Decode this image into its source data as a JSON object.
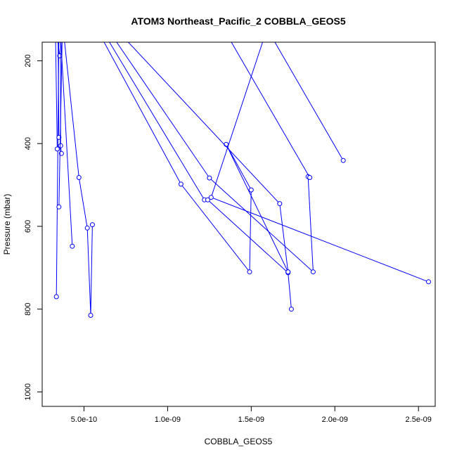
{
  "chart_data": {
    "type": "line",
    "title": "ATOM3 Northeast_Pacific_2 COBBLA_GEOS5",
    "xlabel": "COBBLA_GEOS5",
    "ylabel": "Pressure (mbar)",
    "x_ticks": [
      5e-10,
      1e-09,
      1.5e-09,
      2e-09,
      2.5e-09
    ],
    "x_tick_labels": [
      "5.0e-10",
      "1.0e-09",
      "1.5e-09",
      "2.0e-09",
      "2.5e-09"
    ],
    "y_ticks": [
      200,
      400,
      600,
      800,
      1000
    ],
    "y_tick_labels": [
      "200",
      "400",
      "600",
      "800",
      "1000"
    ],
    "xlim": [
      2.5e-10,
      2.6e-09
    ],
    "ylim": [
      1035,
      155
    ],
    "y_reversed": true,
    "color": "#0000ff",
    "series": [
      {
        "points": [
          [
            3.5e-10,
            140
          ],
          [
            3.35e-10,
            770
          ]
        ]
      },
      {
        "points": [
          [
            3.3e-10,
            140
          ],
          [
            3.4e-10,
            413
          ]
        ]
      },
      {
        "points": [
          [
            3.4e-10,
            140
          ],
          [
            3.55e-10,
            188
          ]
        ]
      },
      {
        "points": [
          [
            3.45e-10,
            140
          ],
          [
            3.5e-10,
            385
          ]
        ]
      },
      {
        "points": [
          [
            3.6e-10,
            140
          ],
          [
            3.6e-10,
            405
          ],
          [
            3.65e-10,
            424
          ]
        ]
      },
      {
        "points": [
          [
            3.7e-10,
            140
          ],
          [
            3.5e-10,
            553
          ]
        ]
      },
      {
        "points": [
          [
            3.6e-10,
            140
          ],
          [
            4.3e-10,
            648
          ]
        ]
      },
      {
        "points": [
          [
            3.8e-10,
            140
          ],
          [
            4.7e-10,
            482
          ],
          [
            5.2e-10,
            604
          ],
          [
            5.4e-10,
            815
          ],
          [
            5.5e-10,
            596
          ]
        ]
      },
      {
        "points": [
          [
            6e-10,
            140
          ],
          [
            1.08e-09,
            498
          ],
          [
            1.49e-09,
            710
          ],
          [
            1.5e-09,
            512
          ],
          [
            1.35e-09,
            402
          ],
          [
            1.72e-09,
            710
          ]
        ]
      },
      {
        "points": [
          [
            6.3e-10,
            140
          ],
          [
            1.22e-09,
            536
          ],
          [
            1.24e-09,
            536
          ],
          [
            1.72e-09,
            712
          ],
          [
            1.74e-09,
            800
          ]
        ]
      },
      {
        "points": [
          [
            6.7e-10,
            140
          ],
          [
            1.25e-09,
            483
          ],
          [
            1.87e-09,
            710
          ],
          [
            1.84e-09,
            480
          ]
        ]
      },
      {
        "points": [
          [
            7.3e-10,
            140
          ],
          [
            1.67e-09,
            545
          ],
          [
            1.72e-09,
            710
          ]
        ]
      },
      {
        "points": [
          [
            1.58e-09,
            140
          ],
          [
            1.26e-09,
            530
          ],
          [
            2.56e-09,
            734
          ]
        ]
      },
      {
        "points": [
          [
            1.36e-09,
            140
          ],
          [
            1.85e-09,
            482
          ]
        ]
      },
      {
        "points": [
          [
            1.62e-09,
            140
          ],
          [
            2.05e-09,
            441
          ]
        ]
      }
    ]
  }
}
